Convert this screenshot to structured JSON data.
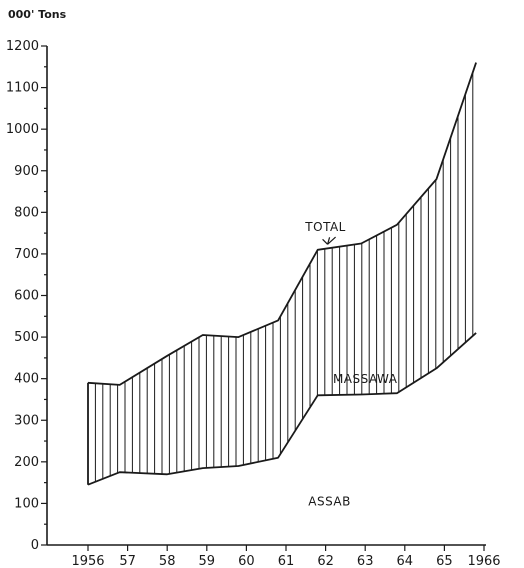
{
  "chart_data": {
    "type": "area",
    "unit_label": "000' Tons",
    "x": [
      1956,
      1957,
      1958,
      1959,
      1960,
      1961,
      1962,
      1963,
      1964,
      1965,
      1966
    ],
    "x_tick_labels": [
      "1956",
      "57",
      "58",
      "59",
      "60",
      "61",
      "62",
      "63",
      "64",
      "65",
      "1966"
    ],
    "ylim": [
      0,
      1200
    ],
    "y_ticks": [
      0,
      100,
      200,
      300,
      400,
      500,
      600,
      700,
      800,
      900,
      1000,
      1100,
      1200
    ],
    "y_tick_labels": [
      "0",
      "100",
      "200",
      "300",
      "400",
      "500",
      "600",
      "700",
      "800",
      "900",
      "1000",
      "1100",
      "1200"
    ],
    "series": [
      {
        "name": "TOTAL",
        "points": [
          [
            1956,
            390
          ],
          [
            1956.8,
            385
          ],
          [
            1958,
            455
          ],
          [
            1958.9,
            505
          ],
          [
            1959.8,
            500
          ],
          [
            1960.8,
            540
          ],
          [
            1961.8,
            710
          ],
          [
            1962.9,
            725
          ],
          [
            1963.8,
            770
          ],
          [
            1964.8,
            880
          ],
          [
            1965.8,
            1160
          ]
        ]
      },
      {
        "name": "ASSAB",
        "points": [
          [
            1956,
            145
          ],
          [
            1956.8,
            175
          ],
          [
            1958,
            170
          ],
          [
            1958.9,
            185
          ],
          [
            1959.8,
            190
          ],
          [
            1960.8,
            210
          ],
          [
            1961.8,
            360
          ],
          [
            1962.9,
            362
          ],
          [
            1963.8,
            365
          ],
          [
            1964.8,
            425
          ],
          [
            1965.8,
            510
          ]
        ]
      }
    ],
    "annotations": [
      {
        "text": "TOTAL",
        "x": 1962.0,
        "y": 755
      },
      {
        "text": "MASSAWA",
        "x": 1963.0,
        "y": 390
      },
      {
        "text": "ASSAB",
        "x": 1962.1,
        "y": 95
      }
    ],
    "grid": false,
    "legend": "none"
  }
}
